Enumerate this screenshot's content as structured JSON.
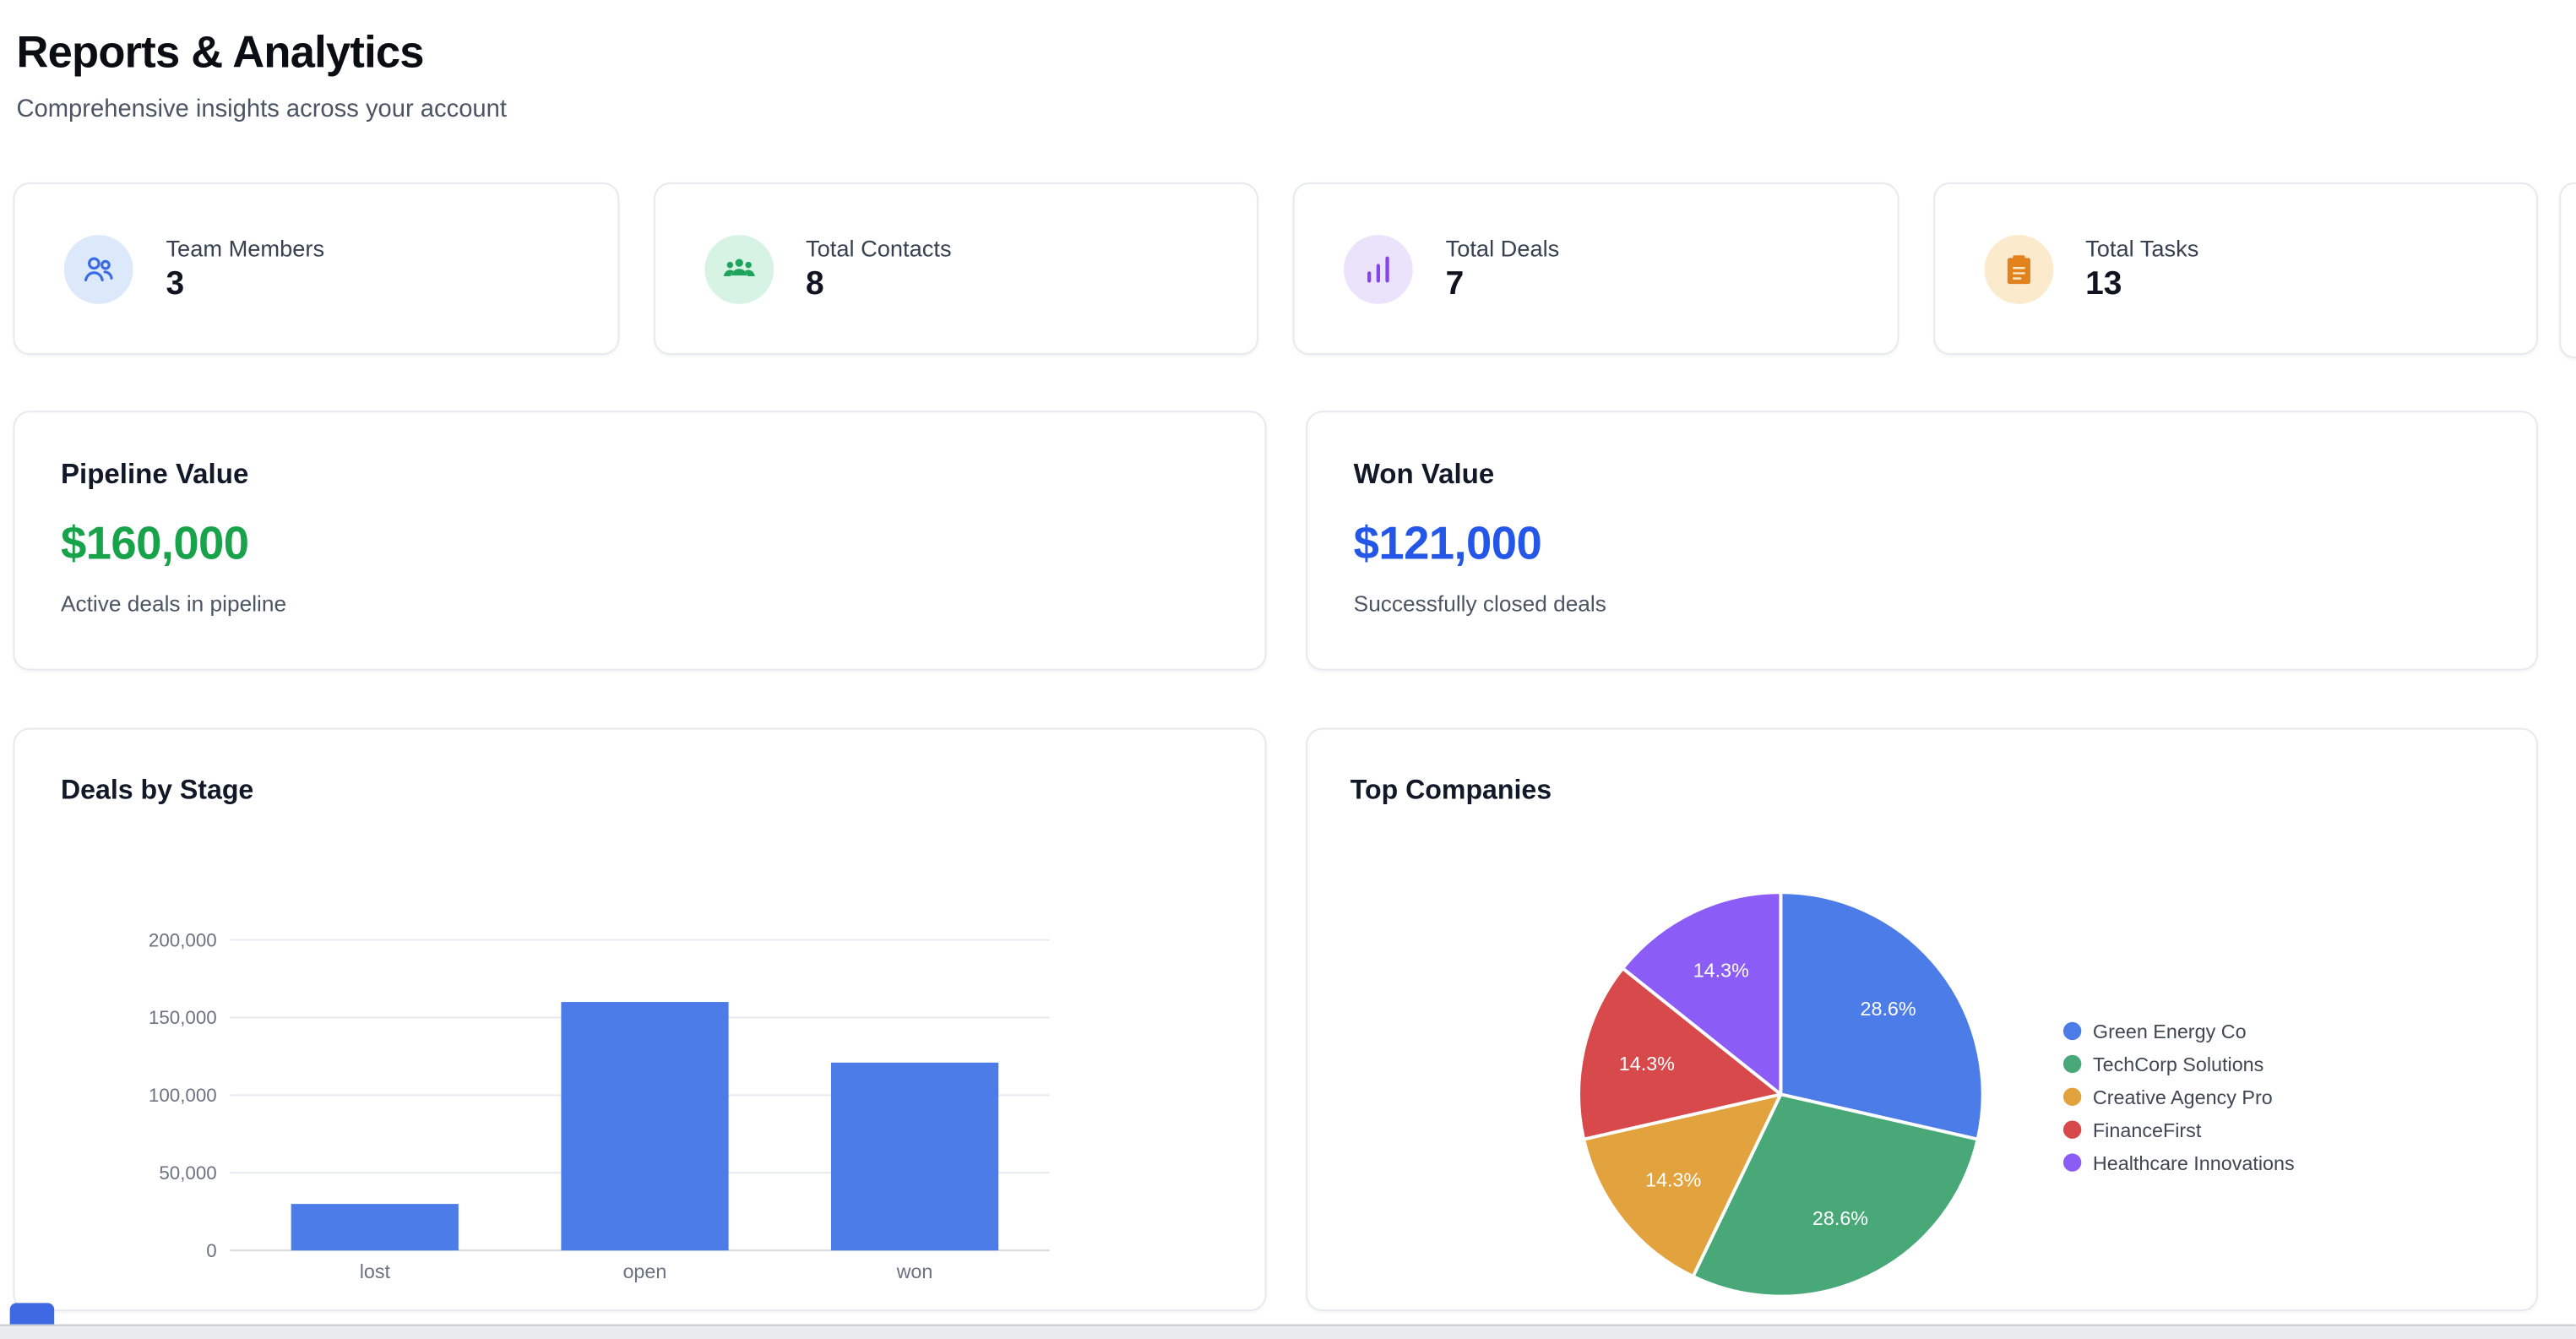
{
  "page": {
    "title": "Reports & Analytics",
    "subtitle": "Comprehensive insights across your account"
  },
  "stats": [
    {
      "label": "Team Members",
      "value": "3",
      "icon": "users-icon",
      "icon_color": "#3b6ce6",
      "bg": "#dce9fb"
    },
    {
      "label": "Total Contacts",
      "value": "8",
      "icon": "contacts-icon",
      "icon_color": "#1ea45c",
      "bg": "#d7f3e3"
    },
    {
      "label": "Total Deals",
      "value": "7",
      "icon": "bar-chart-icon",
      "icon_color": "#8545e8",
      "bg": "#ebe3fb"
    },
    {
      "label": "Total Tasks",
      "value": "13",
      "icon": "clipboard-icon",
      "icon_color": "#e2821d",
      "bg": "#fbeacc"
    }
  ],
  "summary_cards": [
    {
      "title": "Pipeline Value",
      "value": "$160,000",
      "value_color": "#18a34a",
      "subtitle": "Active deals in pipeline"
    },
    {
      "title": "Won Value",
      "value": "$121,000",
      "value_color": "#2457e8",
      "subtitle": "Successfully closed deals"
    }
  ],
  "chart_data": [
    {
      "type": "bar",
      "title": "Deals by Stage",
      "categories": [
        "lost",
        "open",
        "won"
      ],
      "values": [
        30000,
        160000,
        121000
      ],
      "xlabel": "",
      "ylabel": "",
      "ylim": [
        0,
        200000
      ],
      "ytick_step": 50000,
      "ytick_labels": [
        "0",
        "50,000",
        "100,000",
        "150,000",
        "200,000"
      ],
      "bar_color": "#4b7ce8",
      "grid": true,
      "legend_position": "none"
    },
    {
      "type": "pie",
      "title": "Top Companies",
      "labels": [
        "Green Energy Co",
        "TechCorp Solutions",
        "Creative Agency Pro",
        "FinanceFirst",
        "Healthcare Innovations"
      ],
      "values": [
        28.6,
        28.6,
        14.3,
        14.3,
        14.3
      ],
      "slice_labels": [
        "28.6%",
        "28.6%",
        "14.3%",
        "14.3%",
        "14.3%"
      ],
      "colors": [
        "#4b7ce8",
        "#49a878",
        "#e2a23e",
        "#d8494b",
        "#8b5cf6"
      ],
      "legend_position": "right"
    }
  ]
}
